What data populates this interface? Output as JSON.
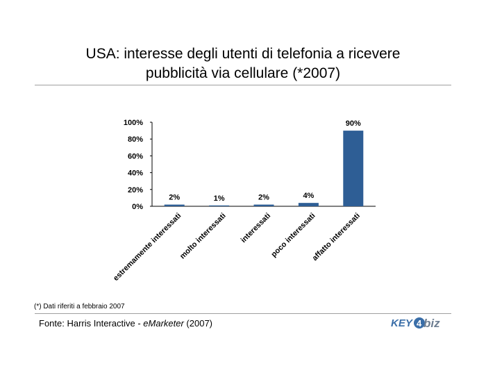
{
  "header": {
    "title_line1": "USA: interesse degli utenti di telefonia a ricevere",
    "title_line2": "pubblicità via cellulare (*2007)"
  },
  "chart_data": {
    "type": "bar",
    "categories": [
      "estremamente interessati",
      "molto interessati",
      "interessati",
      "poco interessati",
      "affatto interessati"
    ],
    "values": [
      2,
      1,
      2,
      4,
      90
    ],
    "data_labels": [
      "2%",
      "1%",
      "2%",
      "4%",
      "90%"
    ],
    "y_ticks": [
      0,
      20,
      40,
      60,
      80,
      100
    ],
    "y_tick_labels": [
      "0%",
      "20%",
      "40%",
      "60%",
      "80%",
      "100%"
    ],
    "ylim": [
      0,
      100
    ],
    "grid": false,
    "legend": "none",
    "bar_color": "#2e5e95"
  },
  "footer": {
    "footnote": "(*) Dati riferiti a febbraio 2007",
    "source_prefix": "Fonte: Harris Interactive - ",
    "source_italic": "eMarketer",
    "source_suffix": " (2007)",
    "logo_text": "KEY4biz"
  }
}
